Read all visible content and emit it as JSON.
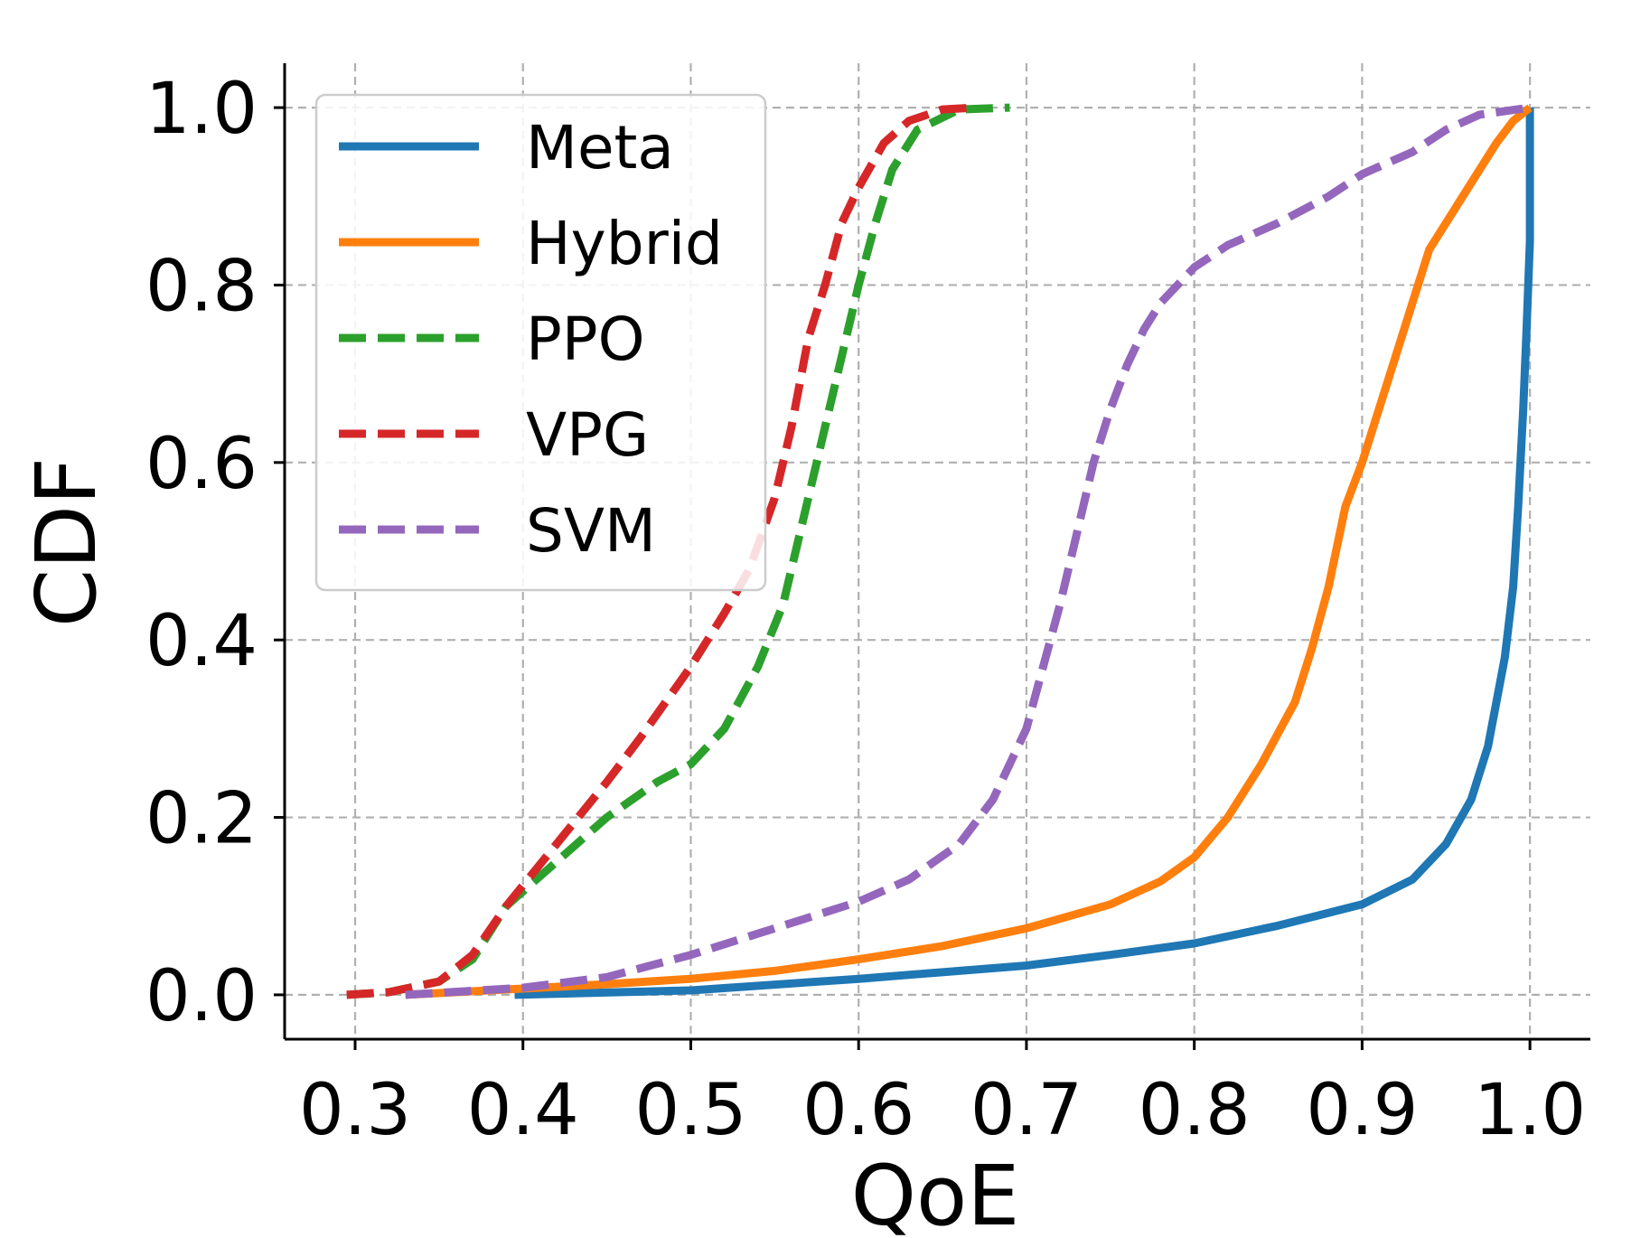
{
  "chart_data": {
    "type": "line",
    "title": "",
    "xlabel": "QoE",
    "ylabel": "CDF",
    "xlim": [
      0.258,
      1.036
    ],
    "ylim": [
      -0.05,
      1.05
    ],
    "xticks": [
      0.3,
      0.4,
      0.5,
      0.6,
      0.7,
      0.8,
      0.9,
      1.0
    ],
    "xtick_labels": [
      "0.3",
      "0.4",
      "0.5",
      "0.6",
      "0.7",
      "0.8",
      "0.9",
      "1.0"
    ],
    "yticks": [
      0.0,
      0.2,
      0.4,
      0.6,
      0.8,
      1.0
    ],
    "ytick_labels": [
      "0.0",
      "0.2",
      "0.4",
      "0.6",
      "0.8",
      "1.0"
    ],
    "grid": true,
    "legend_position": "upper-left",
    "series": [
      {
        "name": "Meta",
        "color": "#1f77b4",
        "dash": "solid",
        "x": [
          0.395,
          0.5,
          0.6,
          0.7,
          0.75,
          0.8,
          0.85,
          0.9,
          0.93,
          0.95,
          0.965,
          0.975,
          0.985,
          0.99,
          0.993,
          0.996,
          0.998,
          1.0,
          1.0
        ],
        "y": [
          0.0,
          0.005,
          0.018,
          0.033,
          0.045,
          0.058,
          0.078,
          0.102,
          0.13,
          0.17,
          0.22,
          0.28,
          0.38,
          0.46,
          0.55,
          0.66,
          0.75,
          0.85,
          1.0
        ]
      },
      {
        "name": "Hybrid",
        "color": "#ff7f0e",
        "dash": "solid",
        "x": [
          0.33,
          0.4,
          0.45,
          0.5,
          0.55,
          0.6,
          0.65,
          0.7,
          0.75,
          0.78,
          0.8,
          0.82,
          0.84,
          0.86,
          0.87,
          0.88,
          0.89,
          0.9,
          0.91,
          0.92,
          0.93,
          0.94,
          0.96,
          0.98,
          0.99,
          1.0
        ],
        "y": [
          0.0,
          0.007,
          0.012,
          0.018,
          0.027,
          0.04,
          0.055,
          0.075,
          0.102,
          0.128,
          0.155,
          0.2,
          0.26,
          0.33,
          0.39,
          0.46,
          0.55,
          0.6,
          0.66,
          0.72,
          0.78,
          0.84,
          0.9,
          0.96,
          0.985,
          1.0
        ]
      },
      {
        "name": "PPO",
        "color": "#2ca02c",
        "dash": "dashed",
        "x": [
          0.295,
          0.32,
          0.35,
          0.37,
          0.39,
          0.42,
          0.45,
          0.48,
          0.5,
          0.52,
          0.54,
          0.555,
          0.565,
          0.575,
          0.585,
          0.595,
          0.6,
          0.61,
          0.62,
          0.635,
          0.66,
          0.69
        ],
        "y": [
          0.0,
          0.003,
          0.015,
          0.04,
          0.1,
          0.15,
          0.2,
          0.24,
          0.26,
          0.3,
          0.37,
          0.44,
          0.52,
          0.6,
          0.68,
          0.76,
          0.8,
          0.87,
          0.93,
          0.975,
          0.998,
          1.0
        ]
      },
      {
        "name": "VPG",
        "color": "#d62728",
        "dash": "dashed",
        "x": [
          0.295,
          0.32,
          0.35,
          0.37,
          0.39,
          0.42,
          0.45,
          0.47,
          0.5,
          0.52,
          0.535,
          0.55,
          0.56,
          0.57,
          0.58,
          0.59,
          0.6,
          0.615,
          0.63,
          0.65,
          0.67
        ],
        "y": [
          0.0,
          0.003,
          0.015,
          0.045,
          0.1,
          0.17,
          0.24,
          0.29,
          0.37,
          0.43,
          0.48,
          0.56,
          0.64,
          0.74,
          0.8,
          0.87,
          0.91,
          0.96,
          0.985,
          0.998,
          1.0
        ]
      },
      {
        "name": "SVM",
        "color": "#9467bd",
        "dash": "dashed",
        "x": [
          0.33,
          0.4,
          0.45,
          0.5,
          0.55,
          0.6,
          0.63,
          0.66,
          0.68,
          0.7,
          0.71,
          0.72,
          0.73,
          0.74,
          0.75,
          0.76,
          0.77,
          0.78,
          0.8,
          0.82,
          0.85,
          0.88,
          0.9,
          0.93,
          0.95,
          0.97,
          1.0
        ],
        "y": [
          0.0,
          0.008,
          0.02,
          0.045,
          0.075,
          0.105,
          0.13,
          0.17,
          0.22,
          0.3,
          0.37,
          0.44,
          0.52,
          0.6,
          0.66,
          0.71,
          0.75,
          0.78,
          0.82,
          0.845,
          0.87,
          0.9,
          0.925,
          0.95,
          0.975,
          0.992,
          1.0
        ]
      }
    ]
  }
}
